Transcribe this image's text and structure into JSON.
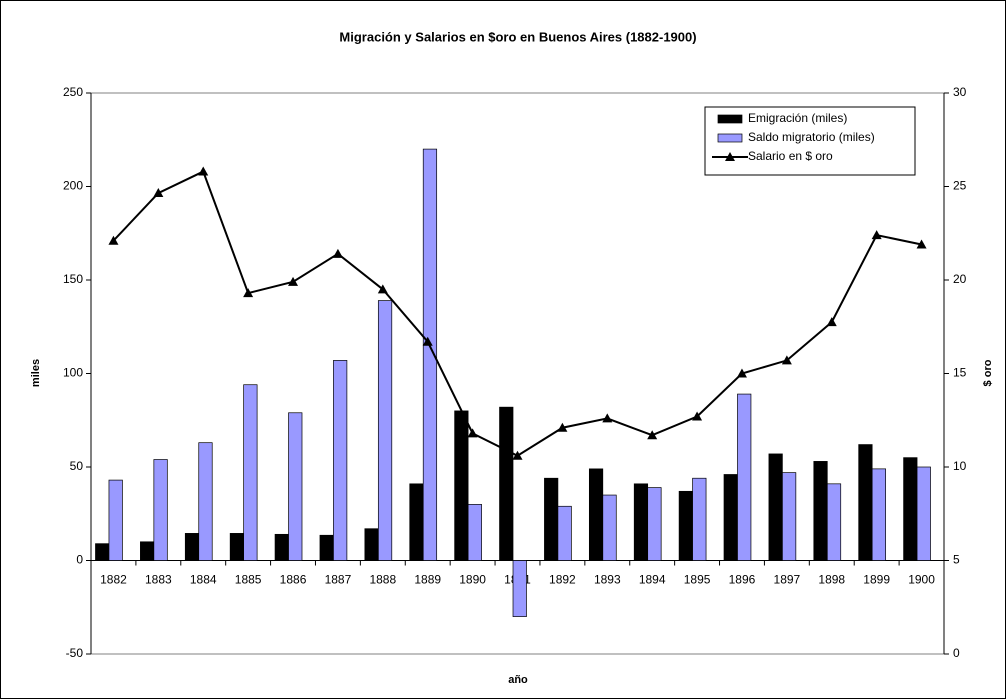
{
  "chart_data": {
    "type": "bar-line",
    "title": "Migración y Salarios en $oro en Buenos Aires (1882-1900)",
    "x_label": "año",
    "y_label": "miles",
    "y2_label": "$ oro",
    "categories": [
      "1882",
      "1883",
      "1884",
      "1885",
      "1886",
      "1887",
      "1888",
      "1889",
      "1890",
      "1891",
      "1892",
      "1893",
      "1894",
      "1895",
      "1896",
      "1897",
      "1898",
      "1899",
      "1900"
    ],
    "series": [
      {
        "name": "Emigración (miles)",
        "type": "bar",
        "color": "#000000",
        "values": [
          9,
          10,
          14.5,
          14.5,
          14,
          13.5,
          17,
          41,
          80,
          82,
          44,
          49,
          41,
          37,
          46,
          57,
          53,
          62,
          55
        ]
      },
      {
        "name": "Saldo migratorio (miles)",
        "type": "bar",
        "color": "#9999ff",
        "values": [
          43,
          54,
          63,
          94,
          79,
          107,
          139,
          220,
          30,
          -30,
          29,
          35,
          39,
          44,
          89,
          47,
          41,
          49,
          50
        ]
      },
      {
        "name": "Salario en $ oro",
        "type": "line",
        "axis": "y2",
        "color": "#000000",
        "values": [
          22.1,
          24.65,
          25.8,
          19.3,
          19.9,
          21.4,
          19.5,
          16.7,
          11.8,
          10.6,
          12.1,
          12.6,
          11.7,
          12.7,
          15.0,
          15.7,
          17.75,
          22.4,
          21.9
        ]
      }
    ],
    "ylim": [
      -50,
      250
    ],
    "yticks": [
      -50,
      0,
      50,
      100,
      150,
      200,
      250
    ],
    "y2lim": [
      0,
      30
    ],
    "y2ticks": [
      0,
      5,
      10,
      15,
      20,
      25,
      30
    ],
    "legend": "top-right"
  }
}
